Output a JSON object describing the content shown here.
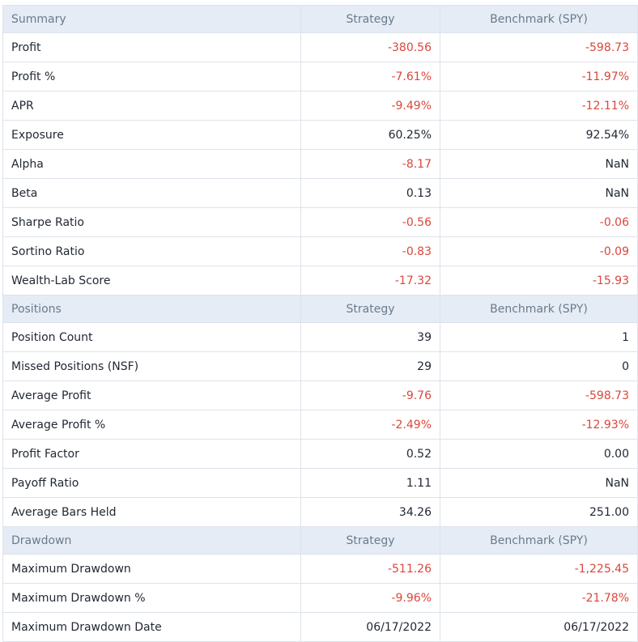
{
  "colors": {
    "header_bg": "#e5ecf5",
    "header_text": "#6a7a8c",
    "text": "#222833",
    "negative": "#d9473b",
    "border": "#dde3ea"
  },
  "sections": [
    {
      "title": "Summary",
      "col_strategy": "Strategy",
      "col_benchmark": "Benchmark (SPY)",
      "rows": [
        {
          "label": "Profit",
          "strategy": "-380.56",
          "benchmark": "-598.73"
        },
        {
          "label": "Profit %",
          "strategy": "-7.61%",
          "benchmark": "-11.97%"
        },
        {
          "label": "APR",
          "strategy": "-9.49%",
          "benchmark": "-12.11%"
        },
        {
          "label": "Exposure",
          "strategy": "60.25%",
          "benchmark": "92.54%"
        },
        {
          "label": "Alpha",
          "strategy": "-8.17",
          "benchmark": "NaN"
        },
        {
          "label": "Beta",
          "strategy": "0.13",
          "benchmark": "NaN"
        },
        {
          "label": "Sharpe Ratio",
          "strategy": "-0.56",
          "benchmark": "-0.06"
        },
        {
          "label": "Sortino Ratio",
          "strategy": "-0.83",
          "benchmark": "-0.09"
        },
        {
          "label": "Wealth-Lab Score",
          "strategy": "-17.32",
          "benchmark": "-15.93"
        }
      ]
    },
    {
      "title": "Positions",
      "col_strategy": "Strategy",
      "col_benchmark": "Benchmark (SPY)",
      "rows": [
        {
          "label": "Position Count",
          "strategy": "39",
          "benchmark": "1"
        },
        {
          "label": "Missed Positions (NSF)",
          "strategy": "29",
          "benchmark": "0"
        },
        {
          "label": "Average Profit",
          "strategy": "-9.76",
          "benchmark": "-598.73"
        },
        {
          "label": "Average Profit %",
          "strategy": "-2.49%",
          "benchmark": "-12.93%"
        },
        {
          "label": "Profit Factor",
          "strategy": "0.52",
          "benchmark": "0.00"
        },
        {
          "label": "Payoff Ratio",
          "strategy": "1.11",
          "benchmark": "NaN"
        },
        {
          "label": "Average Bars Held",
          "strategy": "34.26",
          "benchmark": "251.00"
        }
      ]
    },
    {
      "title": "Drawdown",
      "col_strategy": "Strategy",
      "col_benchmark": "Benchmark (SPY)",
      "rows": [
        {
          "label": "Maximum Drawdown",
          "strategy": "-511.26",
          "benchmark": "-1,225.45"
        },
        {
          "label": "Maximum Drawdown %",
          "strategy": "-9.96%",
          "benchmark": "-21.78%"
        },
        {
          "label": "Maximum Drawdown Date",
          "strategy": "06/17/2022",
          "benchmark": "06/17/2022"
        }
      ]
    }
  ]
}
